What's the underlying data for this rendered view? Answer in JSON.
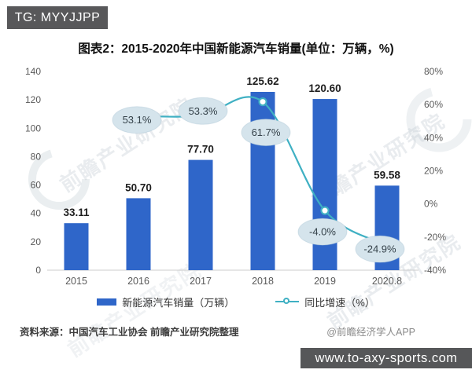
{
  "header": {
    "badge": "TG: MYYJJPP"
  },
  "title": "图表2：2015-2020年中国新能源汽车销量(单位：万辆，%)",
  "watermark": {
    "text": "前瞻产业研究院"
  },
  "chart_data": {
    "type": "bar+line",
    "categories": [
      "2015",
      "2016",
      "2017",
      "2018",
      "2019",
      "2020.8"
    ],
    "series": [
      {
        "name": "新能源汽车销量（万辆）",
        "type": "bar",
        "axis": "left",
        "values": [
          33.11,
          50.7,
          77.7,
          125.62,
          120.6,
          59.58
        ],
        "labels": [
          "33.11",
          "50.70",
          "77.70",
          "125.62",
          "120.60",
          "59.58"
        ],
        "color": "#2f66c9"
      },
      {
        "name": "同比增速（%）",
        "type": "line",
        "axis": "right",
        "values": [
          null,
          53.1,
          53.3,
          61.7,
          -4.0,
          -24.9
        ],
        "labels": [
          null,
          "53.1%",
          "53.3%",
          "61.7%",
          "-4.0%",
          "-24.9%"
        ],
        "color": "#3fb0c3"
      }
    ],
    "left_axis": {
      "min": 0,
      "max": 140,
      "step": 20,
      "ticks": [
        "0",
        "20",
        "40",
        "60",
        "80",
        "100",
        "120",
        "140"
      ]
    },
    "right_axis": {
      "min": -40,
      "max": 80,
      "step": 20,
      "ticks": [
        "-40%",
        "-20%",
        "0%",
        "20%",
        "40%",
        "60%",
        "80%"
      ]
    },
    "grid": false,
    "legend_position": "bottom",
    "layout_hints": {
      "bubble_fill": "#d5e4ec",
      "bubble_rx": 31,
      "bubble_ry": 17,
      "bubble_offsets": {
        "1": [
          -2,
          5
        ],
        "2": [
          3,
          -6
        ],
        "3": [
          4,
          39
        ],
        "4": [
          -3,
          27
        ],
        "5": [
          -9,
          5
        ]
      },
      "axis_line_color": "#cccccc",
      "tick_color": "#595959",
      "bar_label_color": "#1f1f1f"
    }
  },
  "footer": {
    "source": "资料来源：中国汽车工业协会 前瞻产业研究院整理",
    "credit": "@前瞻经济学人APP",
    "url": "www.to-axy-sports.com"
  }
}
